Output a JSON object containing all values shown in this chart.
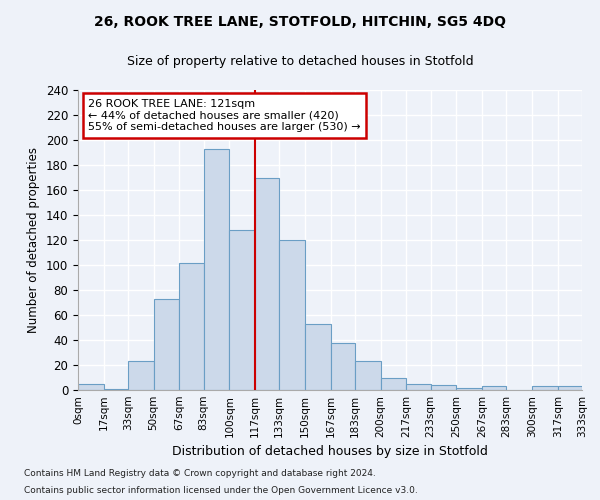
{
  "title1": "26, ROOK TREE LANE, STOTFOLD, HITCHIN, SG5 4DQ",
  "title2": "Size of property relative to detached houses in Stotfold",
  "xlabel": "Distribution of detached houses by size in Stotfold",
  "ylabel": "Number of detached properties",
  "footnote1": "Contains HM Land Registry data © Crown copyright and database right 2024.",
  "footnote2": "Contains public sector information licensed under the Open Government Licence v3.0.",
  "bar_color": "#ccd9ea",
  "bar_edge_color": "#6a9ec5",
  "background_color": "#eef2f9",
  "grid_color": "#ffffff",
  "vline_x": 117,
  "vline_color": "#cc0000",
  "annotation_text": "26 ROOK TREE LANE: 121sqm\n← 44% of detached houses are smaller (420)\n55% of semi-detached houses are larger (530) →",
  "annotation_box_color": "#cc0000",
  "bins": [
    0,
    17,
    33,
    50,
    67,
    83,
    100,
    117,
    133,
    150,
    167,
    183,
    200,
    217,
    233,
    250,
    267,
    283,
    300,
    317,
    333
  ],
  "bin_labels": [
    "0sqm",
    "17sqm",
    "33sqm",
    "50sqm",
    "67sqm",
    "83sqm",
    "100sqm",
    "117sqm",
    "133sqm",
    "150sqm",
    "167sqm",
    "183sqm",
    "200sqm",
    "217sqm",
    "233sqm",
    "250sqm",
    "267sqm",
    "283sqm",
    "300sqm",
    "317sqm",
    "333sqm"
  ],
  "values": [
    5,
    1,
    23,
    73,
    102,
    193,
    128,
    170,
    120,
    53,
    38,
    23,
    10,
    5,
    4,
    2,
    3,
    0,
    3,
    3
  ],
  "ylim": [
    0,
    240
  ],
  "yticks": [
    0,
    20,
    40,
    60,
    80,
    100,
    120,
    140,
    160,
    180,
    200,
    220,
    240
  ]
}
